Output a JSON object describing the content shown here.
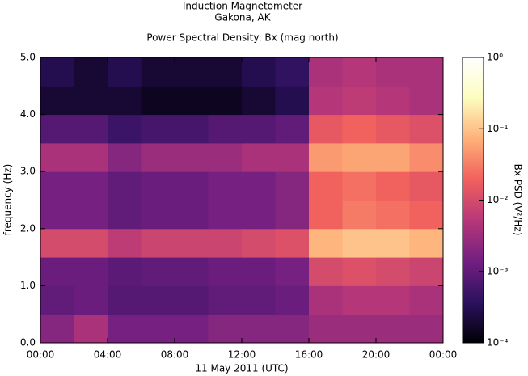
{
  "chart_data": {
    "type": "heatmap",
    "title": [
      "Induction Magnetometer",
      "Gakona, AK"
    ],
    "subtitle": "Power Spectral Density: Bx (mag north)",
    "x_label": "11 May 2011 (UTC)",
    "y_label": "frequency (Hz)",
    "colorbar_label": "Bx PSD (V²/Hz)",
    "x_bins": [
      0,
      2,
      4,
      6,
      8,
      10,
      12,
      14,
      16,
      18,
      20,
      22,
      24
    ],
    "y_bins": [
      0,
      0.5,
      1,
      1.5,
      2,
      2.5,
      3,
      3.5,
      4,
      4.5,
      5
    ],
    "z": [
      [
        0.002,
        0.004,
        0.0015,
        0.0015,
        0.0015,
        0.002,
        0.002,
        0.002,
        0.003,
        0.003,
        0.003,
        0.003
      ],
      [
        0.001,
        0.0012,
        0.0008,
        0.0008,
        0.0008,
        0.001,
        0.001,
        0.0012,
        0.004,
        0.005,
        0.005,
        0.004
      ],
      [
        0.0012,
        0.0012,
        0.0009,
        0.001,
        0.001,
        0.0012,
        0.0012,
        0.0015,
        0.01,
        0.012,
        0.01,
        0.008
      ],
      [
        0.01,
        0.01,
        0.006,
        0.008,
        0.008,
        0.008,
        0.01,
        0.012,
        0.08,
        0.1,
        0.1,
        0.08
      ],
      [
        0.0015,
        0.0015,
        0.001,
        0.0012,
        0.0012,
        0.0015,
        0.0015,
        0.002,
        0.02,
        0.03,
        0.025,
        0.02
      ],
      [
        0.0015,
        0.0015,
        0.001,
        0.0012,
        0.0012,
        0.0015,
        0.0015,
        0.002,
        0.02,
        0.025,
        0.02,
        0.015
      ],
      [
        0.004,
        0.004,
        0.002,
        0.003,
        0.003,
        0.003,
        0.004,
        0.004,
        0.05,
        0.06,
        0.06,
        0.04
      ],
      [
        0.0008,
        0.0008,
        0.0005,
        0.0006,
        0.0006,
        0.0008,
        0.0008,
        0.001,
        0.015,
        0.02,
        0.015,
        0.012
      ],
      [
        0.0002,
        0.0002,
        0.0002,
        0.00015,
        0.00015,
        0.00015,
        0.0002,
        0.0003,
        0.005,
        0.006,
        0.005,
        0.004
      ],
      [
        0.0003,
        0.0002,
        0.0003,
        0.0002,
        0.0002,
        0.0002,
        0.0003,
        0.0004,
        0.004,
        0.005,
        0.004,
        0.004
      ]
    ],
    "xlim": [
      0,
      24
    ],
    "xticks": [
      {
        "value": 0,
        "label": "00:00"
      },
      {
        "value": 4,
        "label": "04:00"
      },
      {
        "value": 8,
        "label": "08:00"
      },
      {
        "value": 12,
        "label": "12:00"
      },
      {
        "value": 16,
        "label": "16:00"
      },
      {
        "value": 20,
        "label": "20:00"
      },
      {
        "value": 24,
        "label": "00:00"
      }
    ],
    "ylim": [
      0,
      5
    ],
    "yticks": [
      {
        "value": 0,
        "label": "0.0"
      },
      {
        "value": 1,
        "label": "1.0"
      },
      {
        "value": 2,
        "label": "2.0"
      },
      {
        "value": 3,
        "label": "3.0"
      },
      {
        "value": 4,
        "label": "4.0"
      },
      {
        "value": 5,
        "label": "5.0"
      }
    ],
    "zlim": [
      0.0001,
      1
    ],
    "zscale": "log",
    "zticks": [
      {
        "value": 0.0001,
        "label": "10⁻⁴"
      },
      {
        "value": 0.001,
        "label": "10⁻³"
      },
      {
        "value": 0.01,
        "label": "10⁻²"
      },
      {
        "value": 0.1,
        "label": "10⁻¹"
      },
      {
        "value": 1,
        "label": "10⁰"
      }
    ],
    "colormap": [
      "#000004",
      "#2c115f",
      "#721f81",
      "#b73779",
      "#f1605d",
      "#feb078",
      "#fcfdbf",
      "#ffffff"
    ]
  }
}
